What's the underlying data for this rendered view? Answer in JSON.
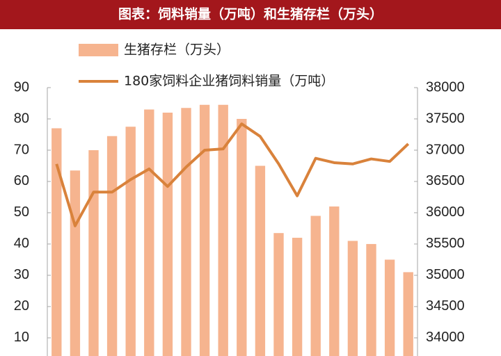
{
  "chart_data": {
    "type": "bar",
    "title": "图表：饲料销量（万吨）和生猪存栏（万头）",
    "categories": [
      null,
      null,
      null,
      null,
      null,
      null,
      null,
      null,
      null,
      null,
      null,
      null,
      null,
      null,
      null,
      null,
      null,
      null,
      null,
      null
    ],
    "series": [
      {
        "name": "生猪存栏（万头）",
        "type": "bar",
        "color": "#f6b48f",
        "values": [
          77,
          63.5,
          70,
          74.5,
          77.5,
          83,
          82,
          83.5,
          84.5,
          84.5,
          80,
          65,
          43.5,
          42,
          49,
          52,
          41,
          40,
          35,
          31
        ]
      },
      {
        "name": "180家饲料企业猪饲料销量（万吨）",
        "type": "line",
        "axis": "y2",
        "color": "#d9823b",
        "values": [
          36780,
          35790,
          36330,
          36330,
          36530,
          36700,
          36420,
          36730,
          37000,
          37020,
          37420,
          37220,
          36780,
          36270,
          36870,
          36800,
          36780,
          36860,
          36820,
          37100
        ]
      }
    ],
    "ylim": [
      4.2,
      90
    ],
    "yticks": [
      10,
      20,
      30,
      40,
      50,
      60,
      70,
      80,
      90
    ],
    "y2lim": [
      33710,
      38000
    ],
    "y2ticks": [
      34000,
      34500,
      35000,
      35500,
      36000,
      36500,
      37000,
      37500,
      38000
    ],
    "title_background": "#a3171c"
  }
}
